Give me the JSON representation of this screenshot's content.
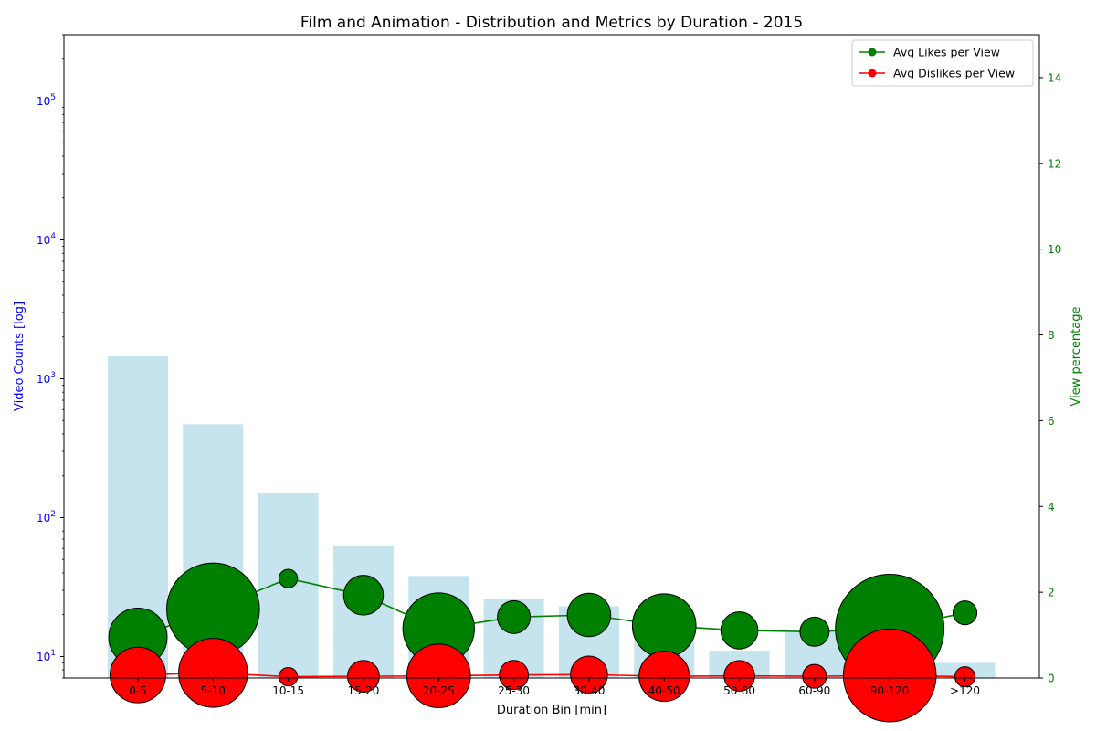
{
  "chart_data": {
    "type": "bar",
    "title": "Film and Animation - Distribution and Metrics by Duration - 2015",
    "xlabel": "Duration Bin [min]",
    "ylabel_left": "Video Counts [log]",
    "ylabel_right": "View percentage",
    "categories": [
      "0-5",
      "5-10",
      "10-15",
      "15-20",
      "20-25",
      "25-30",
      "30-40",
      "40-50",
      "50-60",
      "60-90",
      "90-120",
      ">120"
    ],
    "left_axis": {
      "scale": "log",
      "ylim": [
        7,
        300000
      ],
      "ticks": [
        {
          "value": 10,
          "base": "10",
          "exp": "1"
        },
        {
          "value": 100,
          "base": "10",
          "exp": "2"
        },
        {
          "value": 1000,
          "base": "10",
          "exp": "3"
        },
        {
          "value": 10000,
          "base": "10",
          "exp": "4"
        },
        {
          "value": 100000,
          "base": "10",
          "exp": "5"
        }
      ],
      "color": "#0000ff"
    },
    "right_axis": {
      "scale": "linear",
      "ylim": [
        0,
        15
      ],
      "ticks": [
        "0",
        "2",
        "4",
        "6",
        "8",
        "10",
        "12",
        "14"
      ],
      "color": "#008000"
    },
    "bars": {
      "values": [
        1450,
        470,
        150,
        63,
        38,
        26,
        23,
        13,
        11,
        15,
        16,
        9
      ],
      "color": "#add8e6"
    },
    "series": [
      {
        "name": "Avg Likes per View",
        "color": "#008000",
        "values": [
          0.95,
          1.6,
          2.32,
          1.93,
          1.15,
          1.42,
          1.47,
          1.22,
          1.11,
          1.08,
          1.15,
          1.52
        ],
        "bubble_size": [
          1.1,
          1.75,
          0.35,
          0.75,
          1.35,
          0.62,
          0.82,
          1.2,
          0.7,
          0.55,
          2.05,
          0.45
        ]
      },
      {
        "name": "Avg Dislikes per View",
        "color": "#ff0000",
        "values": [
          0.07,
          0.12,
          0.03,
          0.04,
          0.05,
          0.07,
          0.08,
          0.04,
          0.05,
          0.04,
          0.06,
          0.03
        ],
        "bubble_size": [
          1.05,
          1.3,
          0.35,
          0.6,
          1.2,
          0.55,
          0.7,
          0.95,
          0.58,
          0.45,
          1.75,
          0.38
        ]
      }
    ],
    "legend": {
      "position": "upper-right",
      "entries": [
        "Avg Likes per View",
        "Avg Dislikes per View"
      ]
    },
    "grid": false
  }
}
